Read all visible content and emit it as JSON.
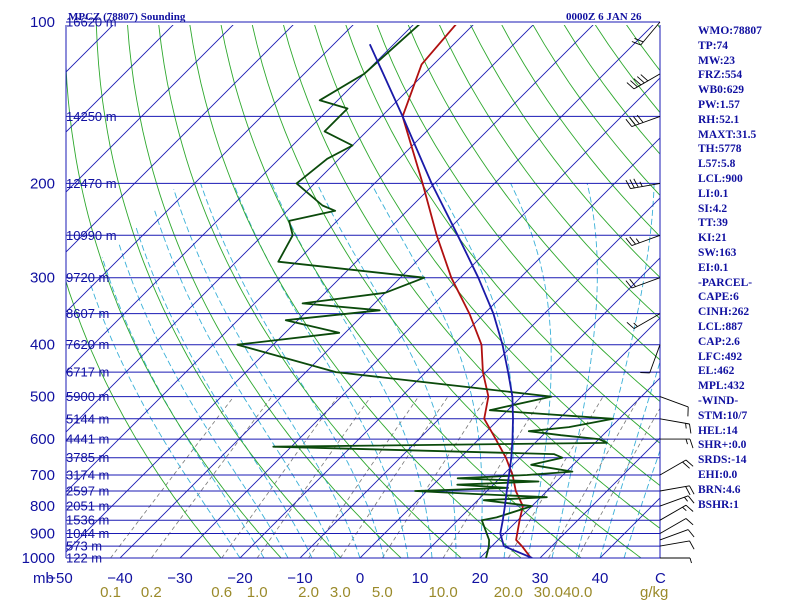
{
  "header": {
    "station": "MPCZ (78807) Sounding",
    "time": "0000Z  6 JAN 26"
  },
  "indices": [
    "WMO:78807",
    "TP:74",
    "MW:23",
    "FRZ:554",
    "WB0:629",
    "PW:1.57",
    "RH:52.1",
    "MAXT:31.5",
    "TH:5778",
    "L57:5.8",
    "LCL:900",
    "LI:0.1",
    "SI:4.2",
    "TT:39",
    "KI:21",
    "SW:163",
    "EI:0.1",
    "-PARCEL-",
    "CAPE:6",
    "CINH:262",
    "LCL:887",
    "CAP:2.6",
    "LFC:492",
    "EL:462",
    "MPL:432",
    "-WIND-",
    "STM:10/7",
    "HEL:14",
    "SHR+:0.0",
    "SRDS:-14",
    "EHI:0.0",
    "BRN:4.6",
    "BSHR:1"
  ],
  "colors": {
    "isobar": "#1a1ab4",
    "isotherm": "#1a1ab4",
    "dry_adiabat": "#2ea82e",
    "moist_adiabat": "#3ab0d8",
    "mixing_ratio": "#777777",
    "temperature": "#b01010",
    "dewpoint": "#0b4a0b",
    "parcel": "#1a1aa8",
    "text": "#1010a0",
    "mixing_label": "#9a8a2a"
  },
  "chart_data": {
    "type": "skew-t",
    "title": "MPCZ (78807) Sounding",
    "xlabel": "",
    "ylabel": "mb",
    "y_unit": "mb",
    "x_unit": "C",
    "y_scale": "log",
    "pressure_ticks": [
      100,
      200,
      300,
      400,
      500,
      600,
      700,
      800,
      900,
      1000
    ],
    "pressure_tick_labels": [
      "100",
      "200",
      "300",
      "400",
      "500",
      "600",
      "700",
      "800",
      "900",
      "1000"
    ],
    "temperature_ticks": [
      -50,
      -40,
      -30,
      -20,
      -10,
      0,
      10,
      20,
      30,
      40
    ],
    "temperature_tick_labels": [
      "−50",
      "−40",
      "−30",
      "−20",
      "−10",
      "0",
      "10",
      "20",
      "30",
      "40"
    ],
    "temperature_unit_label": "C",
    "mixing_ratio_ticks": [
      0.1,
      0.2,
      0.6,
      1.0,
      2.0,
      3.0,
      5.0,
      10.0,
      20.0,
      30.0,
      40.0
    ],
    "mixing_ratio_tick_labels": [
      "0.1",
      "0.2",
      "0.6",
      "1.0",
      "2.0",
      "3.0",
      "5.0",
      "10.0",
      "20.0",
      "30.0",
      "40.0"
    ],
    "mixing_ratio_unit_label": "g/kg",
    "height_labels": [
      {
        "p": 100,
        "label": "16620 m"
      },
      {
        "p": 150,
        "label": "14250 m"
      },
      {
        "p": 200,
        "label": "12470 m"
      },
      {
        "p": 250,
        "label": "10990 m"
      },
      {
        "p": 300,
        "label": "9720 m"
      },
      {
        "p": 350,
        "label": "8607 m"
      },
      {
        "p": 400,
        "label": "7620 m"
      },
      {
        "p": 450,
        "label": "6717 m"
      },
      {
        "p": 500,
        "label": "5900 m"
      },
      {
        "p": 550,
        "label": "5144 m"
      },
      {
        "p": 600,
        "label": "4441 m"
      },
      {
        "p": 650,
        "label": "3785 m"
      },
      {
        "p": 700,
        "label": "3174 m"
      },
      {
        "p": 750,
        "label": "2597 m"
      },
      {
        "p": 800,
        "label": "2051 m"
      },
      {
        "p": 850,
        "label": "1536 m"
      },
      {
        "p": 900,
        "label": "1044 m"
      },
      {
        "p": 950,
        "label": "573 m"
      },
      {
        "p": 1000,
        "label": "122 m"
      }
    ],
    "series": [
      {
        "key": "temperature",
        "p": [
          1000,
          950,
          925,
          850,
          800,
          750,
          700,
          650,
          600,
          550,
          500,
          450,
          400,
          350,
          300,
          250,
          200,
          150,
          120,
          100
        ],
        "t": [
          28.5,
          25.0,
          23.0,
          20.3,
          18.5,
          14.8,
          11.6,
          7.6,
          2.8,
          -2.5,
          -5.5,
          -10.5,
          -15.3,
          -22.5,
          -31.5,
          -41.0,
          -52.0,
          -66.5,
          -72.0,
          -73.0
        ]
      },
      {
        "key": "dewpoint",
        "p": [
          1000,
          950,
          925,
          850,
          840,
          800,
          780,
          770,
          760,
          750,
          740,
          730,
          720,
          710,
          700,
          690,
          670,
          650,
          640,
          620,
          610,
          600,
          590,
          580,
          570,
          550,
          530,
          500,
          450,
          400,
          380,
          360,
          345,
          335,
          320,
          300,
          280,
          250,
          235,
          225,
          220,
          200,
          180,
          170,
          160,
          150,
          145,
          140,
          125,
          100
        ],
        "t": [
          21.0,
          19.5,
          18.5,
          14.0,
          16.0,
          20.0,
          11.0,
          21.0,
          9.0,
          -2.0,
          13.0,
          4.0,
          17.0,
          3.0,
          14.0,
          21.0,
          13.0,
          17.0,
          15.0,
          -33.0,
          22.0,
          20.0,
          13.0,
          7.0,
          13.0,
          19.0,
          -3.0,
          5.0,
          -35.0,
          -56.0,
          -41.0,
          -52.0,
          -38.0,
          -52.0,
          -40.0,
          -36.0,
          -63.0,
          -65.0,
          -68.0,
          -62.0,
          -65.0,
          -73.0,
          -72.0,
          -70.0,
          -77.0,
          -77.0,
          -77.0,
          -83.0,
          -80.0,
          -79.0
        ]
      },
      {
        "key": "parcel",
        "p": [
          1000,
          950,
          900,
          850,
          800,
          750,
          700,
          650,
          600,
          550,
          500,
          450,
          400,
          350,
          300,
          250,
          200,
          150,
          110
        ],
        "t": [
          28.7,
          22.0,
          19.3,
          17.5,
          15.5,
          13.3,
          11.0,
          8.5,
          5.6,
          2.3,
          -1.5,
          -6.3,
          -11.8,
          -18.5,
          -27.0,
          -37.5,
          -50.5,
          -66.5,
          -84.0
        ]
      }
    ],
    "wind_barbs": [
      {
        "p": 1000,
        "dir": 90,
        "spd": 5
      },
      {
        "p": 950,
        "dir": 80,
        "spd": 10
      },
      {
        "p": 925,
        "dir": 70,
        "spd": 10
      },
      {
        "p": 900,
        "dir": 60,
        "spd": 10
      },
      {
        "p": 850,
        "dir": 60,
        "spd": 15
      },
      {
        "p": 800,
        "dir": 70,
        "spd": 15
      },
      {
        "p": 750,
        "dir": 80,
        "spd": 20
      },
      {
        "p": 700,
        "dir": 60,
        "spd": 20
      },
      {
        "p": 600,
        "dir": 90,
        "spd": 15
      },
      {
        "p": 550,
        "dir": 100,
        "spd": 15
      },
      {
        "p": 500,
        "dir": 110,
        "spd": 10
      },
      {
        "p": 400,
        "dir": 200,
        "spd": 10
      },
      {
        "p": 350,
        "dir": 240,
        "spd": 15
      },
      {
        "p": 300,
        "dir": 250,
        "spd": 20
      },
      {
        "p": 250,
        "dir": 250,
        "spd": 25
      },
      {
        "p": 200,
        "dir": 260,
        "spd": 35
      },
      {
        "p": 150,
        "dir": 250,
        "spd": 40
      },
      {
        "p": 125,
        "dir": 240,
        "spd": 50
      },
      {
        "p": 100,
        "dir": 220,
        "spd": 20
      }
    ]
  }
}
